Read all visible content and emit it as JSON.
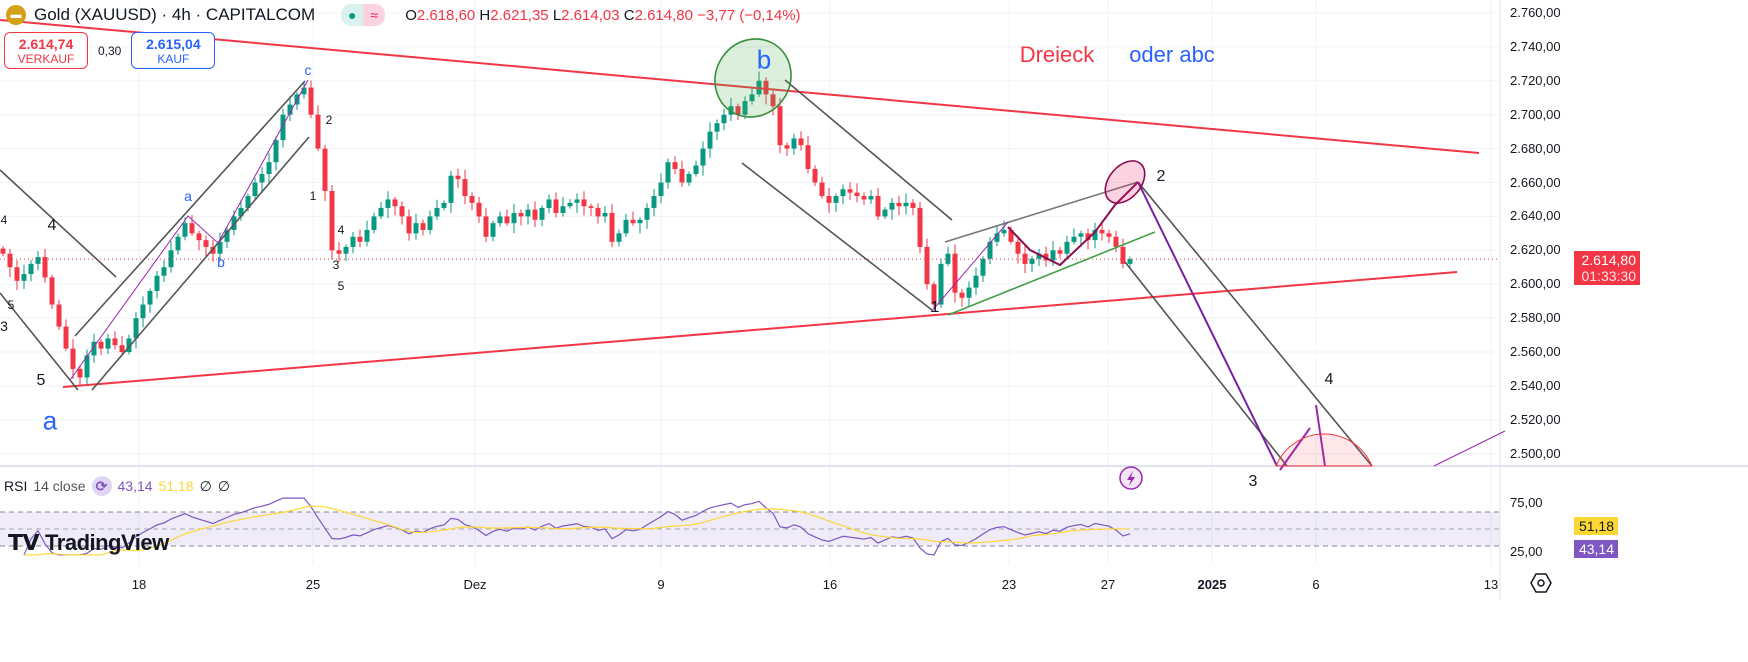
{
  "header": {
    "symbol": "Gold (XAUUSD) · 4h · CAPITALCOM",
    "o_label": "O",
    "o": "2.618,60",
    "h_label": "H",
    "h": "2.621,35",
    "l_label": "L",
    "l": "2.614,03",
    "c_label": "C",
    "c": "2.614,80",
    "change": "−3,77 (−0,14%)"
  },
  "trade": {
    "sell_price": "2.614,74",
    "sell_label": "VERKAUF",
    "spread": "0,30",
    "buy_price": "2.615,04",
    "buy_label": "KAUF"
  },
  "rsi": {
    "label": "RSI",
    "params": "14 close",
    "value": "43,14",
    "ma_value": "51,18",
    "na1": "∅",
    "na2": "∅"
  },
  "price_axis": {
    "current_price": "2.614,80",
    "countdown": "01:33:30",
    "rsi_value": "43,14",
    "rsi_ma": "51,18"
  },
  "branding": "TradingView",
  "annotations": {
    "dreieck": "Dreieck",
    "oder_abc": "oder abc",
    "w_c": "c",
    "w_b_big": "b",
    "w_a_big": "a",
    "w_a_small": "a",
    "w_b_small": "b",
    "n5a": "5",
    "n4a": "4",
    "n4b": "4",
    "n3a": "3",
    "n5b": "5",
    "n2a": "2",
    "n1a": "1",
    "n4c": "4",
    "n3b": "3",
    "n5c": "5",
    "n1b": "1",
    "n2b": "2",
    "n3c": "3",
    "n4d": "4"
  },
  "colors": {
    "up": "#089981",
    "down": "#f23645",
    "rsi": "#7e57c2",
    "rsi_ma": "#fdd835",
    "triangle": "#f23645"
  },
  "chart_data": {
    "type": "candlestick",
    "title": "Gold (XAUUSD) 4h",
    "ylim": [
      2490,
      2765
    ],
    "yticks": [
      2760,
      2740,
      2720,
      2700,
      2680,
      2660,
      2640,
      2620,
      2600,
      2580,
      2560,
      2540,
      2520,
      2500
    ],
    "ytick_labels": [
      "2.760,00",
      "2.740,00",
      "2.720,00",
      "2.700,00",
      "2.680,00",
      "2.660,00",
      "2.640,00",
      "2.620,00",
      "2.600,00",
      "2.580,00",
      "2.560,00",
      "2.540,00",
      "2.520,00",
      "2.500,00"
    ],
    "rsi_ticks": [
      "75,00",
      "25,00"
    ],
    "xtick_labels": [
      "18",
      "25",
      "Dez",
      "9",
      "16",
      "23",
      "27",
      "2025",
      "6",
      "13"
    ],
    "closes": [
      2618,
      2610,
      2602,
      2606,
      2612,
      2616,
      2604,
      2588,
      2575,
      2562,
      2550,
      2545,
      2558,
      2566,
      2562,
      2568,
      2564,
      2560,
      2568,
      2580,
      2588,
      2596,
      2605,
      2610,
      2620,
      2628,
      2636,
      2630,
      2626,
      2622,
      2618,
      2625,
      2632,
      2640,
      2645,
      2652,
      2660,
      2665,
      2672,
      2685,
      2700,
      2706,
      2712,
      2716,
      2700,
      2680,
      2655,
      2620,
      2618,
      2622,
      2628,
      2625,
      2632,
      2640,
      2645,
      2650,
      2646,
      2640,
      2630,
      2636,
      2632,
      2640,
      2645,
      2648,
      2664,
      2662,
      2652,
      2648,
      2640,
      2628,
      2636,
      2640,
      2636,
      2642,
      2640,
      2644,
      2638,
      2645,
      2650,
      2642,
      2646,
      2648,
      2650,
      2646,
      2645,
      2640,
      2642,
      2625,
      2630,
      2638,
      2636,
      2638,
      2645,
      2652,
      2660,
      2672,
      2668,
      2660,
      2665,
      2670,
      2680,
      2690,
      2695,
      2700,
      2705,
      2700,
      2708,
      2712,
      2720,
      2712,
      2705,
      2682,
      2680,
      2686,
      2682,
      2668,
      2660,
      2652,
      2648,
      2652,
      2656,
      2654,
      2652,
      2650,
      2652,
      2640,
      2644,
      2648,
      2646,
      2648,
      2645,
      2622,
      2600,
      2588,
      2612,
      2618,
      2595,
      2592,
      2598,
      2605,
      2615,
      2625,
      2630,
      2632,
      2625,
      2618,
      2612,
      2615,
      2618,
      2614,
      2620,
      2618,
      2625,
      2628,
      2630,
      2626,
      2632,
      2630,
      2628,
      2622,
      2612,
      2614.8
    ],
    "current": 2614.8,
    "rsi_current": 43.14,
    "rsi_ma_current": 51.18
  }
}
